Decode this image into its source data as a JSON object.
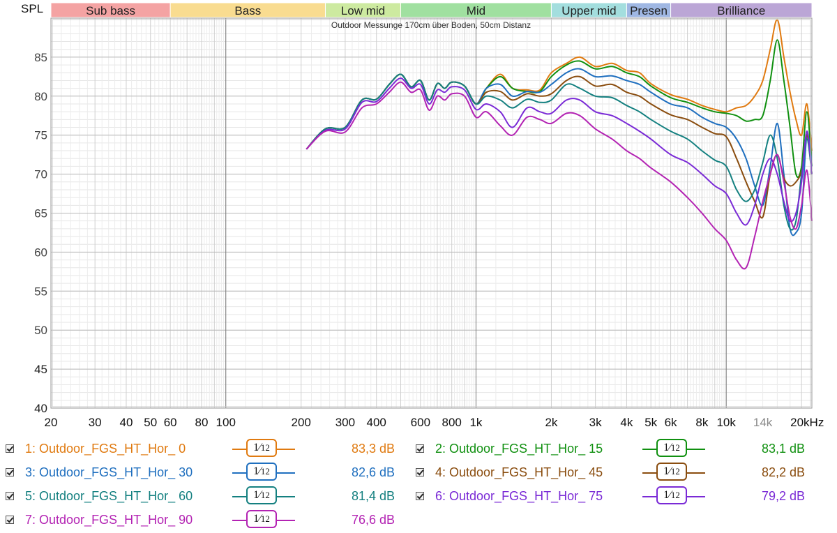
{
  "chart_data": {
    "type": "line",
    "title": "Outdoor Messunge 170cm über Boden, 50cm Distanz",
    "ylabel": "SPL",
    "xunit": "kHz",
    "x_scale": "log",
    "xlim": [
      20,
      22000
    ],
    "ylim": [
      40,
      90
    ],
    "yticks": [
      40,
      45,
      50,
      55,
      60,
      65,
      70,
      75,
      80,
      85
    ],
    "xticks": [
      {
        "v": 20,
        "label": "20"
      },
      {
        "v": 30,
        "label": "30"
      },
      {
        "v": 40,
        "label": "40"
      },
      {
        "v": 50,
        "label": "50"
      },
      {
        "v": 60,
        "label": "60"
      },
      {
        "v": 80,
        "label": "80"
      },
      {
        "v": 100,
        "label": "100"
      },
      {
        "v": 200,
        "label": "200"
      },
      {
        "v": 300,
        "label": "300"
      },
      {
        "v": 400,
        "label": "400"
      },
      {
        "v": 600,
        "label": "600"
      },
      {
        "v": 800,
        "label": "800"
      },
      {
        "v": 1000,
        "label": "1k"
      },
      {
        "v": 2000,
        "label": "2k"
      },
      {
        "v": 3000,
        "label": "3k"
      },
      {
        "v": 4000,
        "label": "4k"
      },
      {
        "v": 5000,
        "label": "5k"
      },
      {
        "v": 6000,
        "label": "6k"
      },
      {
        "v": 8000,
        "label": "8k"
      },
      {
        "v": 10000,
        "label": "10k"
      },
      {
        "v": 14000,
        "label": "14k",
        "muted": true
      },
      {
        "v": 20000,
        "label": "20kHz"
      }
    ],
    "grid": true,
    "bands": [
      {
        "label": "Sub bass",
        "from": 20,
        "to": 60,
        "color": "#f4a3a3"
      },
      {
        "label": "Bass",
        "from": 60,
        "to": 250,
        "color": "#f9dc90"
      },
      {
        "label": "Low mid",
        "from": 250,
        "to": 500,
        "color": "#cdeaa0"
      },
      {
        "label": "Mid",
        "from": 500,
        "to": 2000,
        "color": "#a0e0a0"
      },
      {
        "label": "Upper mid",
        "from": 2000,
        "to": 4000,
        "color": "#a3dede"
      },
      {
        "label": "Presen",
        "from": 4000,
        "to": 6000,
        "color": "#9fb7e3"
      },
      {
        "label": "Brilliance",
        "from": 6000,
        "to": 22000,
        "color": "#bba6d6"
      }
    ],
    "x": [
      210,
      250,
      300,
      350,
      400,
      450,
      500,
      550,
      600,
      650,
      700,
      750,
      800,
      900,
      1000,
      1100,
      1250,
      1400,
      1600,
      1800,
      2000,
      2300,
      2600,
      3000,
      3500,
      4000,
      4500,
      5000,
      6000,
      7000,
      8000,
      9000,
      10000,
      11000,
      12000,
      13000,
      14000,
      15000,
      16000,
      17000,
      18000,
      19000,
      20000,
      21000,
      22000
    ],
    "series": [
      {
        "name": "1: Outdoor_FGS_HT_Hor_ 0",
        "color": "#e07a10",
        "avg": "83,3 dB",
        "values": [
          73.2,
          75.8,
          76.0,
          79.5,
          79.6,
          81.5,
          82.8,
          81.2,
          82.0,
          79.5,
          81.6,
          81.0,
          81.8,
          81.3,
          79.0,
          81.0,
          82.8,
          81.0,
          80.8,
          80.8,
          83.0,
          84.2,
          85.0,
          83.8,
          84.2,
          83.3,
          83.0,
          81.6,
          80.2,
          79.6,
          78.8,
          78.3,
          78.0,
          78.5,
          78.8,
          80.0,
          82.0,
          86.0,
          89.8,
          85.0,
          80.5,
          77.0,
          75.0,
          79.0,
          73.0
        ]
      },
      {
        "name": "2: Outdoor_FGS_HT_Hor_ 15",
        "color": "#109010",
        "avg": "83,1 dB",
        "values": [
          73.2,
          75.8,
          76.0,
          79.5,
          79.6,
          81.5,
          82.8,
          81.2,
          82.0,
          79.5,
          81.6,
          81.0,
          81.8,
          81.3,
          79.0,
          81.0,
          82.5,
          81.0,
          80.6,
          80.6,
          82.5,
          84.0,
          84.5,
          83.5,
          83.8,
          83.0,
          82.5,
          81.3,
          79.8,
          79.2,
          78.5,
          78.0,
          77.8,
          77.5,
          76.8,
          77.0,
          77.5,
          82.0,
          87.2,
          82.0,
          76.0,
          70.0,
          71.0,
          78.0,
          71.0
        ]
      },
      {
        "name": "3: Outdoor_FGS_HT_Hor_ 30",
        "color": "#1f6fbf",
        "avg": "82,6 dB",
        "values": [
          73.2,
          75.8,
          76.0,
          79.5,
          79.6,
          81.5,
          82.8,
          81.2,
          82.0,
          79.5,
          81.6,
          81.0,
          81.8,
          81.3,
          79.0,
          81.0,
          81.5,
          80.0,
          80.6,
          80.5,
          81.5,
          83.0,
          83.5,
          82.5,
          82.6,
          82.0,
          81.5,
          80.5,
          79.0,
          78.5,
          77.3,
          76.5,
          76.0,
          74.5,
          72.0,
          68.5,
          66.0,
          71.0,
          76.5,
          70.0,
          63.0,
          62.5,
          65.0,
          75.0,
          71.0
        ]
      },
      {
        "name": "4: Outdoor_FGS_HT_Hor_ 45",
        "color": "#8a4d0f",
        "avg": "82,2 dB",
        "values": [
          73.2,
          75.8,
          76.0,
          79.5,
          79.6,
          81.5,
          82.8,
          81.2,
          82.0,
          79.5,
          81.6,
          81.0,
          81.8,
          81.3,
          79.0,
          80.5,
          80.6,
          79.5,
          80.3,
          80.0,
          80.3,
          82.0,
          82.5,
          81.3,
          81.5,
          80.5,
          80.0,
          79.0,
          77.6,
          77.0,
          76.0,
          75.2,
          74.8,
          72.0,
          69.0,
          66.5,
          64.5,
          70.0,
          72.5,
          69.5,
          68.5,
          69.0,
          70.5,
          75.0,
          70.0
        ]
      },
      {
        "name": "5: Outdoor_FGS_HT_Hor_ 60",
        "color": "#148080",
        "avg": "81,4 dB",
        "values": [
          73.2,
          75.8,
          76.0,
          79.5,
          79.6,
          81.5,
          82.8,
          81.2,
          82.0,
          79.5,
          81.6,
          81.0,
          81.8,
          81.3,
          79.0,
          80.0,
          79.5,
          78.5,
          79.6,
          79.2,
          79.5,
          81.5,
          81.0,
          80.0,
          79.8,
          78.8,
          78.0,
          77.0,
          75.5,
          74.5,
          73.0,
          71.8,
          71.0,
          68.0,
          66.5,
          68.0,
          71.5,
          75.0,
          72.0,
          66.0,
          63.0,
          64.0,
          70.0,
          74.5,
          70.0
        ]
      },
      {
        "name": "6: Outdoor_FGS_HT_Hor_ 75",
        "color": "#7a2ad6",
        "avg": "79,2 dB",
        "values": [
          73.2,
          75.6,
          75.8,
          79.2,
          79.3,
          81.0,
          82.3,
          81.0,
          81.5,
          79.0,
          80.8,
          80.5,
          81.2,
          80.8,
          78.3,
          79.0,
          78.0,
          76.0,
          78.5,
          78.0,
          77.8,
          79.5,
          79.5,
          78.0,
          77.5,
          76.5,
          75.5,
          74.5,
          72.5,
          71.5,
          70.0,
          68.5,
          67.5,
          65.0,
          63.5,
          66.0,
          70.0,
          72.0,
          70.0,
          66.5,
          64.0,
          65.0,
          69.0,
          75.5,
          70.0
        ]
      },
      {
        "name": "7: Outdoor_FGS_HT_Hor_ 90",
        "color": "#b323b3",
        "avg": "76,6 dB",
        "values": [
          73.2,
          75.5,
          75.4,
          78.5,
          79.0,
          80.5,
          81.8,
          80.5,
          80.8,
          78.2,
          80.0,
          79.5,
          80.3,
          80.0,
          77.3,
          78.0,
          76.2,
          75.0,
          77.3,
          77.0,
          76.5,
          77.8,
          77.5,
          75.8,
          74.5,
          73.0,
          72.0,
          70.8,
          69.0,
          67.0,
          65.0,
          63.0,
          61.5,
          59.0,
          58.0,
          62.0,
          66.5,
          70.0,
          72.5,
          69.0,
          64.5,
          63.0,
          66.0,
          70.5,
          64.0
        ]
      }
    ],
    "smoothing": "1/12"
  }
}
